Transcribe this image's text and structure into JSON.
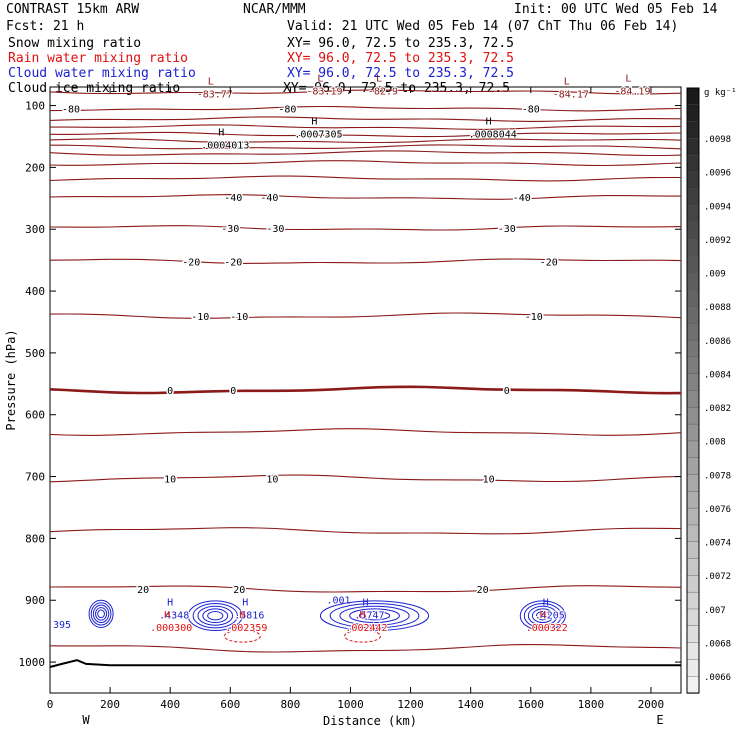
{
  "header": {
    "title": "CONTRAST 15km ARW",
    "fcst": "Fcst:    21 h",
    "center": "NCAR/MMM",
    "init": "Init: 00 UTC Wed 05 Feb 14",
    "valid": "Valid: 21 UTC Wed 05 Feb 14 (07 ChT Thu 06 Feb 14)",
    "fields": [
      {
        "name": "Snow mixing ratio",
        "xy": "XY=  96.0, 72.5 to 235.3, 72.5",
        "color": "#000000"
      },
      {
        "name": "Rain water mixing ratio",
        "xy": "XY=  96.0, 72.5 to 235.3, 72.5",
        "color": "#e01010"
      },
      {
        "name": "Cloud water mixing ratio",
        "xy": "XY=  96.0, 72.5 to 235.3, 72.5",
        "color": "#1a22d0"
      },
      {
        "name": "Cloud ice mixing ratio",
        "xy": "XY=  96.0, 72.5 to 235.3, 72.5",
        "color": "#000000"
      }
    ]
  },
  "chart_data": {
    "type": "cross-section contour",
    "xlabel": "Distance (km)",
    "ylabel": "Pressure (hPa)",
    "xlim": [
      0,
      2100
    ],
    "ylim": [
      1050,
      70
    ],
    "x_ticks": [
      0,
      200,
      400,
      600,
      800,
      1000,
      1200,
      1400,
      1600,
      1800,
      2000
    ],
    "y_ticks": [
      100,
      200,
      300,
      400,
      500,
      600,
      700,
      800,
      900,
      1000
    ],
    "endpoint_labels": [
      "W",
      "E"
    ],
    "temperature_color": "#8b1a1a",
    "temperature_contours": [
      {
        "p": 78
      },
      {
        "p": 105,
        "labels": [
          {
            "x": 70,
            "text": "-80"
          },
          {
            "x": 790,
            "text": "-80"
          },
          {
            "x": 1600,
            "text": "-80"
          }
        ]
      },
      {
        "p": 122
      },
      {
        "p": 135
      },
      {
        "p": 147
      },
      {
        "p": 157
      },
      {
        "p": 167
      },
      {
        "p": 177
      },
      {
        "p": 193
      },
      {
        "p": 218
      },
      {
        "p": 248,
        "labels": [
          {
            "x": 610,
            "text": "-40"
          },
          {
            "x": 730,
            "text": "-40"
          },
          {
            "x": 1570,
            "text": "-40"
          }
        ]
      },
      {
        "p": 298,
        "labels": [
          {
            "x": 600,
            "text": "-30"
          },
          {
            "x": 750,
            "text": "-30"
          },
          {
            "x": 1520,
            "text": "-30"
          }
        ]
      },
      {
        "p": 352,
        "labels": [
          {
            "x": 470,
            "text": "-20"
          },
          {
            "x": 610,
            "text": "-20"
          },
          {
            "x": 1660,
            "text": "-20"
          }
        ]
      },
      {
        "p": 440,
        "labels": [
          {
            "x": 500,
            "text": "-10"
          },
          {
            "x": 630,
            "text": "-10"
          },
          {
            "x": 1610,
            "text": "-10"
          }
        ]
      },
      {
        "p": 560,
        "bold": true,
        "labels": [
          {
            "x": 400,
            "text": "0"
          },
          {
            "x": 610,
            "text": "0"
          },
          {
            "x": 1520,
            "text": "0"
          }
        ]
      },
      {
        "p": 628
      },
      {
        "p": 703,
        "labels": [
          {
            "x": 400,
            "text": "10"
          },
          {
            "x": 740,
            "text": "10"
          },
          {
            "x": 1460,
            "text": "10"
          }
        ]
      },
      {
        "p": 788
      },
      {
        "p": 882,
        "labels": [
          {
            "x": 310,
            "text": "20"
          },
          {
            "x": 630,
            "text": "20"
          },
          {
            "x": 1440,
            "text": "20"
          }
        ]
      },
      {
        "p": 978
      }
    ],
    "extrema": [
      {
        "kind": "L",
        "x": 535,
        "p": 82,
        "value": "-83.77",
        "color": "#8b1a1a"
      },
      {
        "kind": "L",
        "x": 900,
        "p": 77,
        "value": "-83.19",
        "color": "#8b1a1a"
      },
      {
        "kind": "L",
        "x": 1095,
        "p": 77,
        "value": "-82.9",
        "color": "#8b1a1a"
      },
      {
        "kind": "L",
        "x": 1720,
        "p": 82,
        "value": "-84.17",
        "color": "#8b1a1a"
      },
      {
        "kind": "L",
        "x": 1925,
        "p": 77,
        "value": "-84.19",
        "color": "#8b1a1a"
      },
      {
        "kind": "H",
        "x": 570,
        "p": 165,
        "value": ".0004013",
        "color": "#000000"
      },
      {
        "kind": "H",
        "x": 880,
        "p": 147,
        "value": ".0007305",
        "color": "#000000"
      },
      {
        "kind": "H",
        "x": 1460,
        "p": 147,
        "value": ".0008044",
        "color": "#000000"
      },
      {
        "kind": "H",
        "x": 400,
        "p": 925,
        "value": ".4348",
        "color": "#1a22d0"
      },
      {
        "kind": "H",
        "x": 650,
        "p": 925,
        "value": ".5816",
        "color": "#1a22d0"
      },
      {
        "kind": "H",
        "x": 1050,
        "p": 925,
        "value": ".5747",
        "color": "#1a22d0"
      },
      {
        "kind": "H",
        "x": 1650,
        "p": 925,
        "value": ".4205",
        "color": "#1a22d0"
      },
      {
        "kind": "H",
        "x": 390,
        "p": 945,
        "value": ".000300",
        "color": "#e01010"
      },
      {
        "kind": "H",
        "x": 640,
        "p": 945,
        "value": ".002359",
        "color": "#e01010"
      },
      {
        "kind": "H",
        "x": 1040,
        "p": 945,
        "value": ".002442",
        "color": "#e01010"
      },
      {
        "kind": "H",
        "x": 1640,
        "p": 945,
        "value": ".000322",
        "color": "#e01010"
      }
    ],
    "other_labels": [
      {
        "x": 10,
        "p": 945,
        "text": "395",
        "color": "#1a22d0"
      },
      {
        "x": 920,
        "p": 905,
        "text": ".001",
        "color": "#1a22d0"
      }
    ],
    "cloud_blobs": [
      {
        "x": 170,
        "rx": 40,
        "p": 922,
        "rp": 22
      },
      {
        "x": 550,
        "rx": 90,
        "p": 925,
        "rp": 24
      },
      {
        "x": 1080,
        "rx": 180,
        "p": 925,
        "rp": 24
      },
      {
        "x": 1640,
        "rx": 75,
        "p": 925,
        "rp": 24
      }
    ],
    "terrain": [
      [
        0,
        1008
      ],
      [
        40,
        1003
      ],
      [
        90,
        997
      ],
      [
        120,
        1003
      ],
      [
        200,
        1005
      ],
      [
        2100,
        1005
      ]
    ],
    "colorbar": {
      "unit": "g kg⁻¹",
      "ticks": [
        ".0098",
        ".0096",
        ".0094",
        ".0092",
        ".009",
        ".0088",
        ".0086",
        ".0084",
        ".0082",
        ".008",
        ".0078",
        ".0076",
        ".0074",
        ".0072",
        ".007",
        ".0068",
        ".0066"
      ],
      "top_color": "#1a1a1a",
      "bottom_color": "#f2f2f2"
    }
  }
}
